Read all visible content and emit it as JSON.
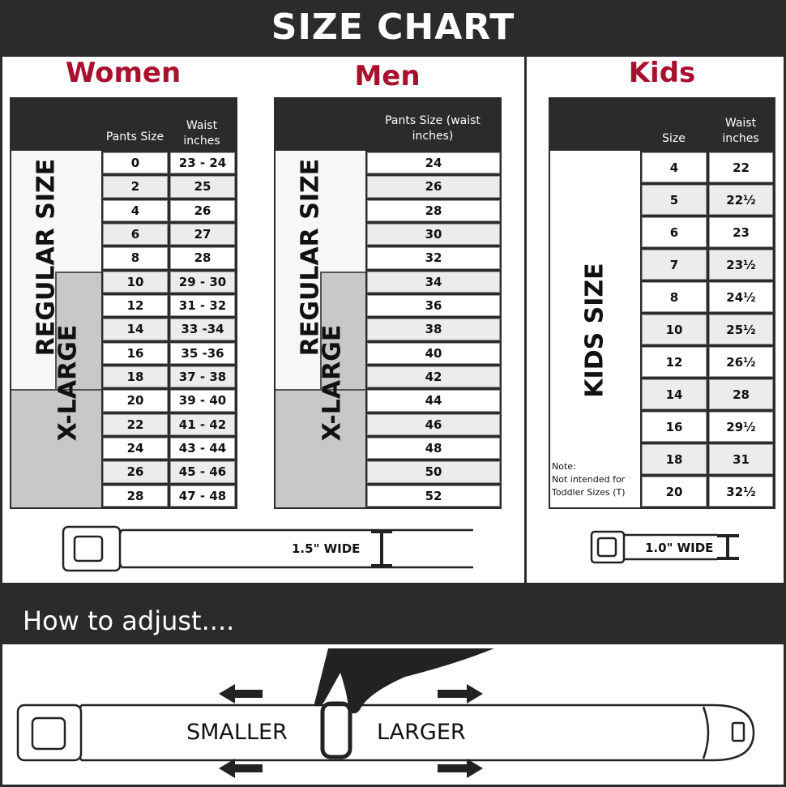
{
  "title": "SIZE CHART",
  "women": {
    "heading": "Women",
    "col1": "Pants Size",
    "col2": "Waist inches",
    "regular_label": "REGULAR SIZE",
    "xlarge_label": "X-LARGE",
    "rows": [
      [
        "0",
        "23 - 24"
      ],
      [
        "2",
        "25"
      ],
      [
        "4",
        "26"
      ],
      [
        "6",
        "27"
      ],
      [
        "8",
        "28"
      ],
      [
        "10",
        "29 - 30"
      ],
      [
        "12",
        "31 - 32"
      ],
      [
        "14",
        "33 -34"
      ],
      [
        "16",
        "35 -36"
      ],
      [
        "18",
        "37 - 38"
      ],
      [
        "20",
        "39 - 40"
      ],
      [
        "22",
        "41 - 42"
      ],
      [
        "24",
        "43 - 44"
      ],
      [
        "26",
        "45 - 46"
      ],
      [
        "28",
        "47 - 48"
      ]
    ],
    "belt_width": "1.5\" WIDE"
  },
  "men": {
    "heading": "Men",
    "col1": "Pants Size (waist inches)",
    "regular_label": "REGULAR SIZE",
    "xlarge_label": "X-LARGE",
    "rows": [
      "24",
      "26",
      "28",
      "30",
      "32",
      "34",
      "36",
      "38",
      "40",
      "42",
      "44",
      "46",
      "48",
      "50",
      "52"
    ]
  },
  "kids": {
    "heading": "Kids",
    "col1": "Size",
    "col2": "Waist inches",
    "label": "KIDS SIZE",
    "note_title": "Note:",
    "note_text": "Not intended for Toddler Sizes (T)",
    "rows": [
      [
        "4",
        "22"
      ],
      [
        "5",
        "22½"
      ],
      [
        "6",
        "23"
      ],
      [
        "7",
        "23½"
      ],
      [
        "8",
        "24½"
      ],
      [
        "10",
        "25½"
      ],
      [
        "12",
        "26½"
      ],
      [
        "14",
        "28"
      ],
      [
        "16",
        "29½"
      ],
      [
        "18",
        "31"
      ],
      [
        "20",
        "32½"
      ]
    ],
    "belt_width": "1.0\" WIDE"
  },
  "adjust": {
    "heading": "How to adjust....",
    "smaller": "SMALLER",
    "larger": "LARGER"
  },
  "colors": {
    "header_bg": "#2b2b2b",
    "heading_red": "#a8102e",
    "xlarge_gray": "#c8c8c8"
  }
}
